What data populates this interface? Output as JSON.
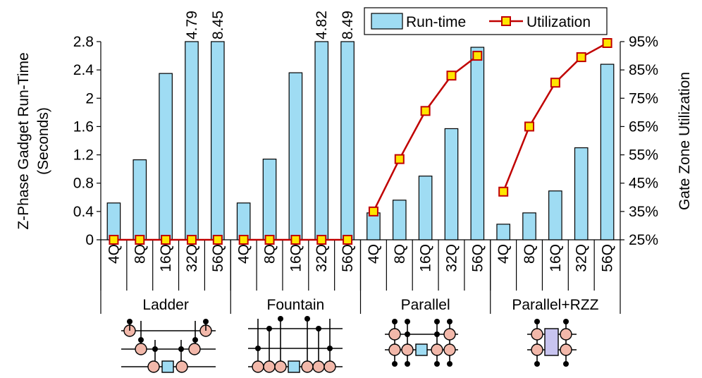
{
  "chart_data": {
    "type": "bar",
    "ylabel_lines": [
      "Z-Phase Gadget Run-Time",
      "(Seconds)"
    ],
    "y2label": "Gate Zone Utilization",
    "ylim": [
      0,
      2.8
    ],
    "yticks": [
      "0",
      "0.4",
      "0.8",
      "1.2",
      "1.6",
      "2",
      "2.4",
      "2.8"
    ],
    "y2lim": [
      25,
      95
    ],
    "y2ticks": [
      "25%",
      "35%",
      "45%",
      "55%",
      "65%",
      "75%",
      "85%",
      "95%"
    ],
    "legend": {
      "bar": "Run-time",
      "line": "Utilization"
    },
    "groups": [
      {
        "name": "Ladder",
        "categories": [
          "4Q",
          "8Q",
          "16Q",
          "32Q",
          "56Q"
        ],
        "runtime": [
          0.52,
          1.13,
          2.35,
          4.79,
          8.45
        ],
        "clip_labels": [
          "",
          "",
          "",
          "4.79",
          "8.45"
        ],
        "utilization": [
          25,
          25,
          25,
          25,
          25
        ]
      },
      {
        "name": "Fountain",
        "categories": [
          "4Q",
          "8Q",
          "16Q",
          "32Q",
          "56Q"
        ],
        "runtime": [
          0.52,
          1.14,
          2.36,
          4.82,
          8.49
        ],
        "clip_labels": [
          "",
          "",
          "",
          "4.82",
          "8.49"
        ],
        "utilization": [
          25,
          25,
          25,
          25,
          25
        ]
      },
      {
        "name": "Parallel",
        "categories": [
          "4Q",
          "8Q",
          "16Q",
          "32Q",
          "56Q"
        ],
        "runtime": [
          0.38,
          0.56,
          0.9,
          1.57,
          2.72
        ],
        "clip_labels": [
          "",
          "",
          "",
          "",
          ""
        ],
        "utilization": [
          35,
          53.5,
          70.5,
          83,
          90
        ]
      },
      {
        "name": "Parallel+RZZ",
        "categories": [
          "4Q",
          "8Q",
          "16Q",
          "32Q",
          "56Q"
        ],
        "runtime": [
          0.22,
          0.38,
          0.69,
          1.3,
          2.48
        ],
        "clip_labels": [
          "",
          "",
          "",
          "",
          ""
        ],
        "utilization": [
          42,
          65,
          80.5,
          89.5,
          94.5
        ]
      }
    ]
  }
}
